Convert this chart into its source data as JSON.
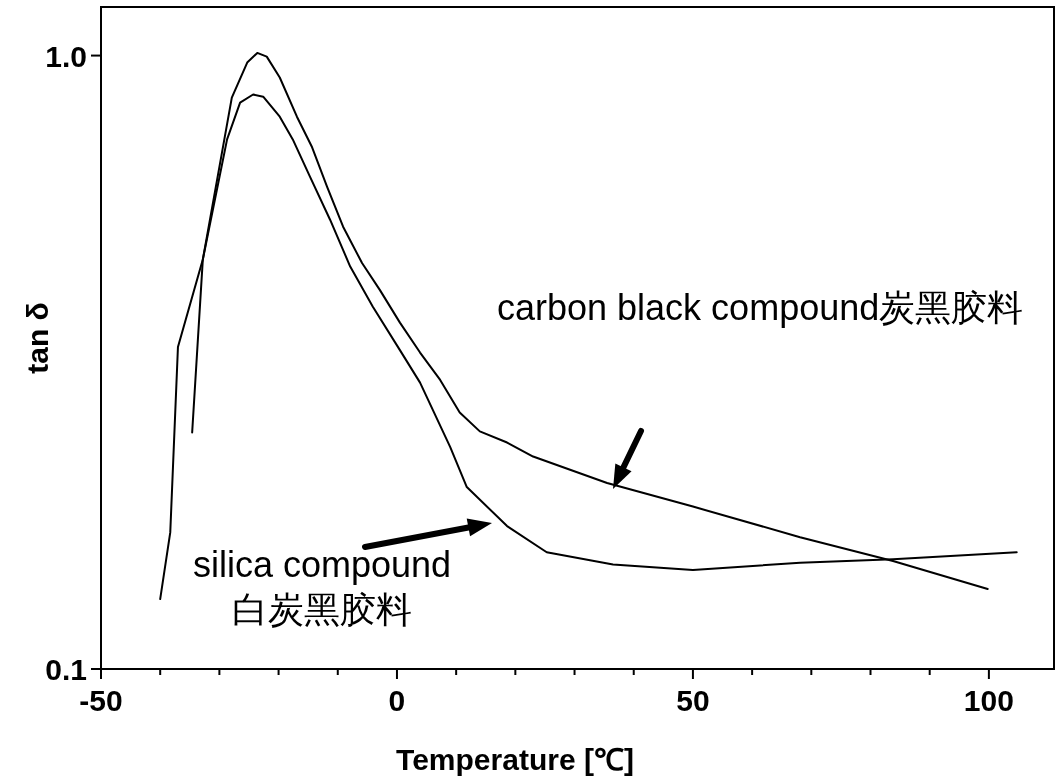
{
  "chart_data": {
    "type": "line",
    "xlabel": "Temperature [℃]",
    "ylabel": "tan δ",
    "xlim": [
      -50,
      111
    ],
    "ylim": [
      0.1,
      1.2
    ],
    "log": "y",
    "xticks": [
      -50,
      {
        "value": -40,
        "label": null
      },
      {
        "value": -30,
        "label": null
      },
      {
        "value": -20,
        "label": null
      },
      {
        "value": -10,
        "label": null
      },
      0,
      {
        "value": 10,
        "label": null
      },
      {
        "value": 20,
        "label": null
      },
      {
        "value": 30,
        "label": null
      },
      {
        "value": 40,
        "label": null
      },
      50,
      {
        "value": 60,
        "label": null
      },
      {
        "value": 70,
        "label": null
      },
      {
        "value": 80,
        "label": null
      },
      {
        "value": 90,
        "label": null
      },
      100
    ],
    "yticks": [
      {
        "value": 0.1,
        "label": "0.1"
      },
      {
        "value": 1.0,
        "label": "1.0"
      }
    ],
    "series": [
      {
        "color": "#000000",
        "x": [
          -34.6,
          -32.8,
          -27.9,
          -25.3,
          -23.6,
          -22.0,
          -19.8,
          -16.9,
          -14.4,
          -11.8,
          -9.1,
          -5.9,
          -2.9,
          0.5,
          3.9,
          7.3,
          10.6,
          14.0,
          18.6,
          23.0,
          35.5,
          50.0,
          68.1,
          83.8,
          99.8
        ],
        "values": [
          0.243,
          0.465,
          0.854,
          0.974,
          1.01,
          0.996,
          0.921,
          0.795,
          0.711,
          0.611,
          0.526,
          0.459,
          0.415,
          0.367,
          0.328,
          0.296,
          0.262,
          0.244,
          0.234,
          0.222,
          0.201,
          0.184,
          0.164,
          0.15,
          0.135
        ]
      },
      {
        "color": "#000000",
        "x": [
          -40.0,
          -38.3,
          -37.0,
          -32.8,
          -28.7,
          -26.5,
          -24.3,
          -22.6,
          -19.8,
          -17.6,
          -14.7,
          -11.3,
          -7.9,
          -4.1,
          0.5,
          3.9,
          9.0,
          11.8,
          18.6,
          25.3,
          36.5,
          50.0,
          68.1,
          83.8,
          104.7
        ],
        "values": [
          0.13,
          0.167,
          0.335,
          0.465,
          0.73,
          0.838,
          0.864,
          0.857,
          0.795,
          0.73,
          0.635,
          0.54,
          0.453,
          0.39,
          0.331,
          0.293,
          0.23,
          0.198,
          0.171,
          0.155,
          0.148,
          0.145,
          0.149,
          0.151,
          0.155
        ]
      }
    ],
    "annotations": [
      "carbon black compound炭黑胶料",
      "silica compound\n白炭黑胶料"
    ]
  }
}
